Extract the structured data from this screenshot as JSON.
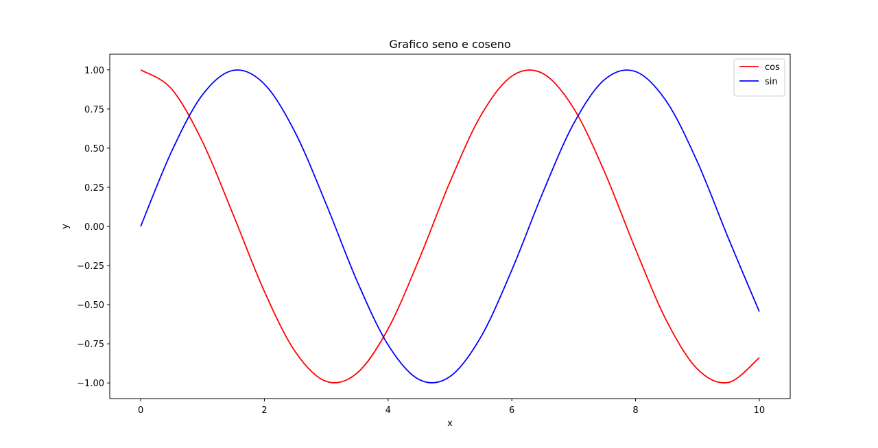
{
  "chart_data": {
    "type": "line",
    "title": "Grafico seno e coseno",
    "xlabel": "x",
    "ylabel": "y",
    "xlim": [
      -0.5,
      10.5
    ],
    "ylim": [
      -1.1,
      1.1
    ],
    "x_ticks": [
      0,
      2,
      4,
      6,
      8,
      10
    ],
    "x_tick_labels": [
      "0",
      "2",
      "4",
      "6",
      "8",
      "10"
    ],
    "y_ticks": [
      1.0,
      0.75,
      0.5,
      0.25,
      0.0,
      -0.25,
      -0.5,
      -0.75,
      -1.0
    ],
    "y_tick_labels": [
      "1.00",
      "0.75",
      "0.50",
      "0.25",
      "0.00",
      "−0.25",
      "−0.50",
      "−0.75",
      "−1.00"
    ],
    "grid": false,
    "legend_position": "top-right",
    "x": [
      0,
      0.5,
      1,
      1.5,
      2,
      2.5,
      3,
      3.5,
      4,
      4.5,
      5,
      5.5,
      6,
      6.5,
      7,
      7.5,
      8,
      8.5,
      9,
      9.5,
      10
    ],
    "series": [
      {
        "name": "cos",
        "color": "#ff0000",
        "values": [
          1.0,
          0.878,
          0.54,
          0.071,
          -0.416,
          -0.801,
          -0.99,
          -0.936,
          -0.654,
          -0.211,
          0.284,
          0.709,
          0.96,
          0.977,
          0.754,
          0.347,
          -0.146,
          -0.602,
          -0.911,
          -0.997,
          -0.839
        ]
      },
      {
        "name": "sin",
        "color": "#0000ff",
        "values": [
          0.0,
          0.479,
          0.841,
          0.997,
          0.909,
          0.598,
          0.141,
          -0.351,
          -0.757,
          -0.978,
          -0.959,
          -0.706,
          -0.279,
          0.215,
          0.657,
          0.938,
          0.989,
          0.798,
          0.412,
          -0.075,
          -0.544
        ]
      }
    ]
  }
}
